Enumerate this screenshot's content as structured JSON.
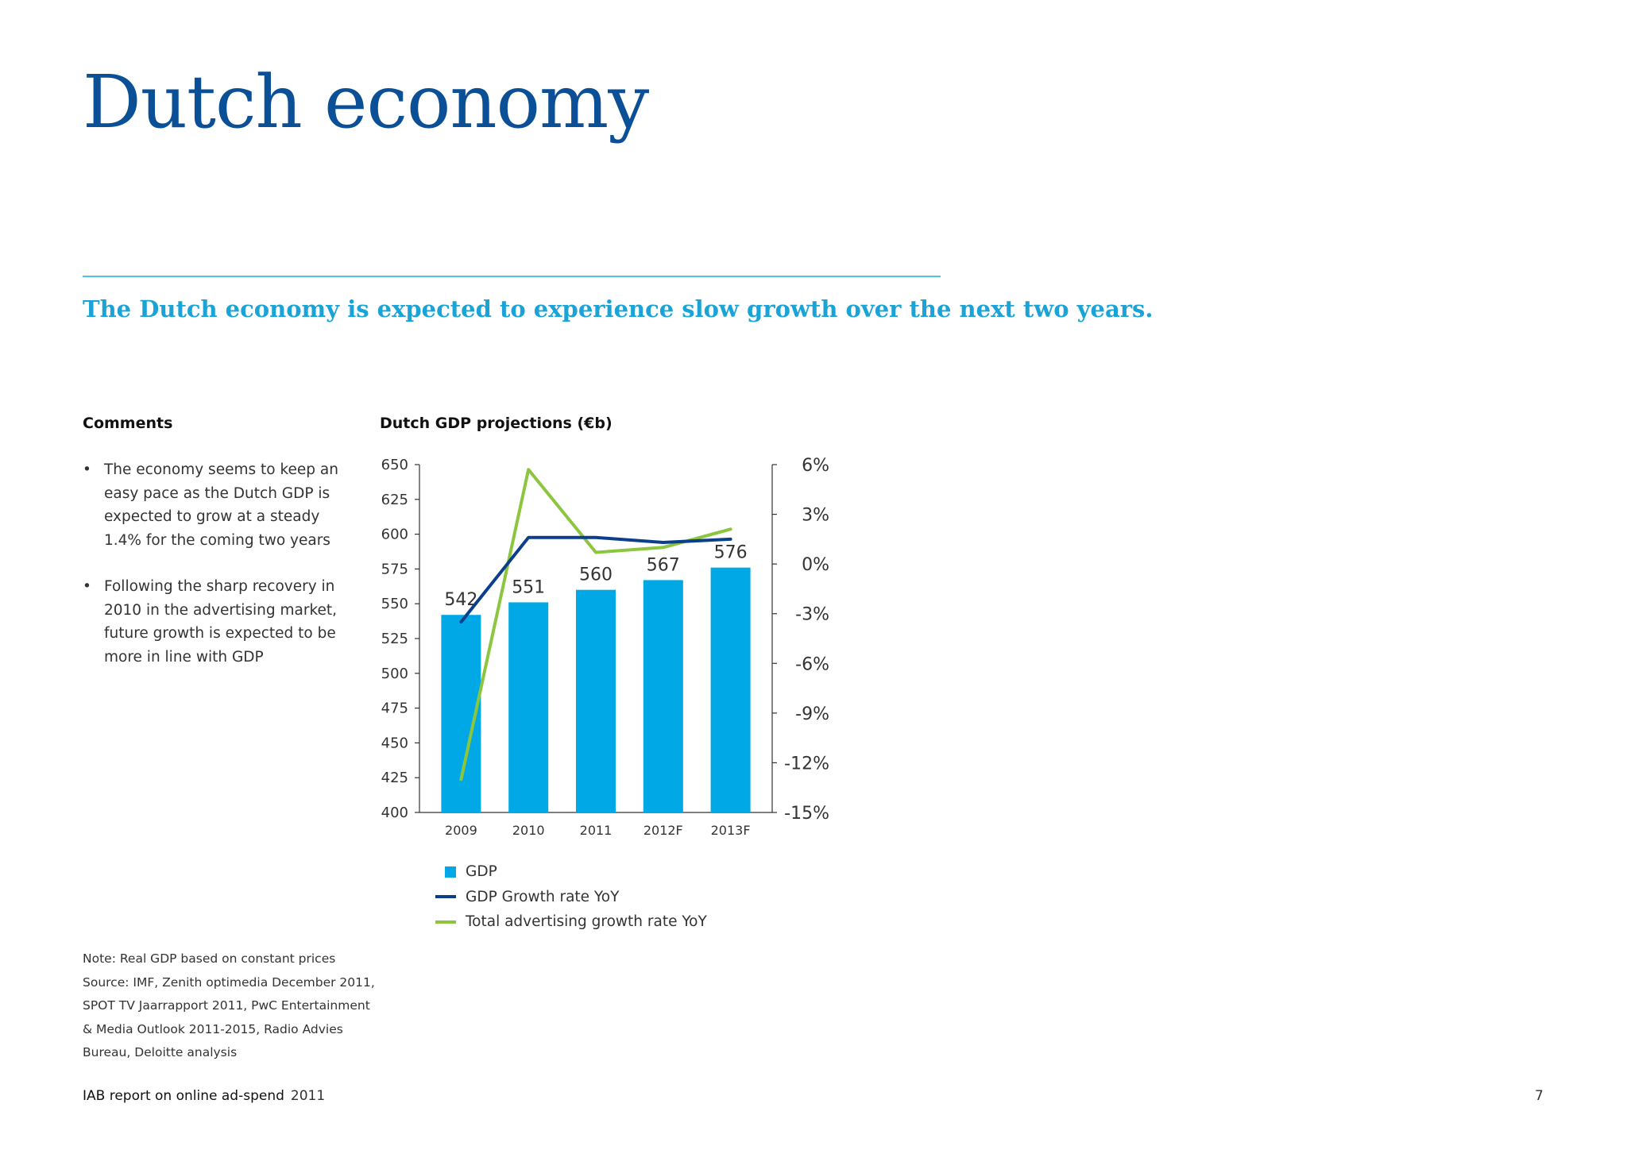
{
  "page": {
    "title": "Dutch economy",
    "subtitle": "The Dutch economy is expected to experience slow growth over the next two years.",
    "comments_heading": "Comments",
    "comments": [
      "The economy seems to keep an easy pace as the Dutch GDP is expected to grow at a steady 1.4% for the coming two years",
      "Following the sharp recovery in 2010 in the advertising market, future growth is expected to be more in line with GDP"
    ],
    "bullet": "•",
    "chart_heading": "Dutch GDP projections (€b)",
    "notes": [
      "Note: Real GDP based on constant prices",
      "Source: IMF, Zenith optimedia December 2011,",
      "SPOT TV Jaarrapport 2011, PwC Entertainment",
      "& Media Outlook 2011-2015, Radio Advies",
      "Bureau, Deloitte analysis"
    ],
    "footer": {
      "report": "IAB report on online ad-spend",
      "year": "2011",
      "page_number": "7"
    }
  },
  "colors": {
    "title": "#0b4f96",
    "subtitle": "#1aa3d6",
    "rule": "#4fc3e6",
    "gdp_bar": "#00a8e6",
    "gdp_growth_line": "#0b3f8c",
    "advertising_line": "#8cc63f"
  },
  "chart_data": {
    "type": "bar",
    "categories": [
      "2009",
      "2010",
      "2011",
      "2012F",
      "2013F"
    ],
    "series": [
      {
        "name": "GDP",
        "type": "bar",
        "axis": "left",
        "values": [
          542,
          551,
          560,
          567,
          576
        ],
        "data_labels": [
          "542",
          "551",
          "560",
          "567",
          "576"
        ]
      },
      {
        "name": "GDP Growth rate YoY",
        "type": "line",
        "axis": "right",
        "values": [
          -3.5,
          1.6,
          1.6,
          1.3,
          1.5
        ]
      },
      {
        "name": "Total advertising growth rate YoY",
        "type": "line",
        "axis": "right",
        "values": [
          -13.0,
          5.7,
          0.7,
          1.0,
          2.1
        ]
      }
    ],
    "y_left": {
      "lim": [
        400,
        650
      ],
      "ticks": [
        "400",
        "425",
        "450",
        "475",
        "500",
        "525",
        "550",
        "575",
        "600",
        "625",
        "650"
      ]
    },
    "y_right": {
      "lim": [
        -15,
        6
      ],
      "ticks": [
        "-15%",
        "-12%",
        "-9%",
        "-6%",
        "-3%",
        "0%",
        "3%",
        "6%"
      ]
    },
    "grid": false,
    "legend_position": "bottom"
  }
}
